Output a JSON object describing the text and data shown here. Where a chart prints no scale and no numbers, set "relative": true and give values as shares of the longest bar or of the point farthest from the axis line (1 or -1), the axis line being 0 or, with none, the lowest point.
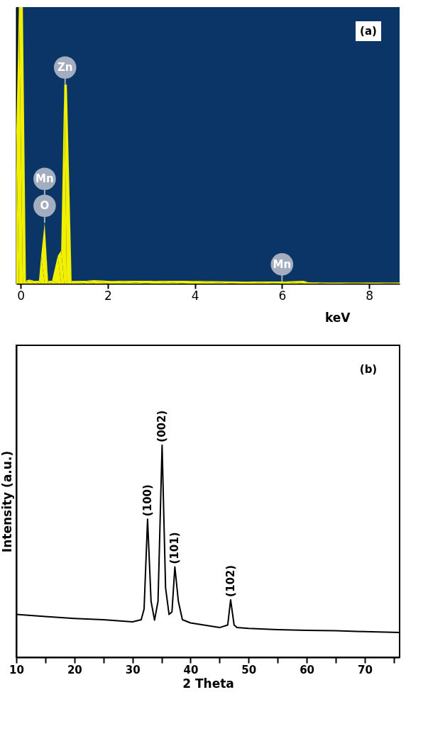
{
  "chart_data": [
    {
      "type": "area",
      "relative": true,
      "xlabel": "keV",
      "xlim": [
        -0.1,
        8.7
      ],
      "xticks": [
        0,
        2,
        4,
        6,
        8
      ],
      "x": [
        -0.1,
        -0.04,
        0.05,
        0.12,
        0.2,
        0.3,
        0.42,
        0.47,
        0.55,
        0.63,
        0.72,
        0.85,
        0.93,
        1.0,
        1.06,
        1.17,
        1.5,
        1.7,
        2,
        3,
        3.8,
        5,
        6,
        6.5,
        6.6,
        7,
        8,
        8.7
      ],
      "series": [
        {
          "color": "#f0f000",
          "values": [
            0.55,
            1,
            1,
            0.01,
            0.015,
            0.01,
            0.01,
            0.1,
            0.22,
            0.01,
            0.01,
            0.1,
            0.12,
            0.72,
            0.72,
            0.01,
            0.01,
            0.013,
            0.01,
            0.01,
            0.01,
            0.008,
            0.008,
            0.01,
            0.005,
            0.004,
            0.004,
            0.004
          ]
        }
      ],
      "annotations": [
        {
          "text": "Zn",
          "x": 1.02,
          "y": 0.72
        },
        {
          "text": "O",
          "x": 0.55,
          "y": 0.22
        },
        {
          "text": "Mn",
          "x": 0.55,
          "y": 0.22
        },
        {
          "text": "Mn",
          "x": 6.0,
          "y": 0.008
        },
        "(a)"
      ]
    },
    {
      "type": "line",
      "relative": true,
      "xlabel": "2 Theta",
      "ylabel": "Intensity (a.u.)",
      "xlim": [
        10,
        76
      ],
      "xticks": [
        10,
        {
          "value": 15,
          "label": null
        },
        20,
        {
          "value": 25,
          "label": null
        },
        30,
        {
          "value": 35,
          "label": null
        },
        40,
        {
          "value": 45,
          "label": null
        },
        50,
        {
          "value": 55,
          "label": null
        },
        60,
        {
          "value": 65,
          "label": null
        },
        70,
        {
          "value": 75,
          "label": null
        }
      ],
      "x": [
        10,
        15,
        20,
        25,
        30,
        31.5,
        32,
        32.6,
        33.2,
        33.8,
        34.4,
        35.1,
        35.7,
        36.3,
        36.8,
        37.3,
        37.9,
        38.6,
        40,
        45,
        46.4,
        46.9,
        47.5,
        48,
        50,
        55,
        60,
        65,
        70,
        76
      ],
      "series": [
        {
          "color": "#000000",
          "values": [
            0.202,
            0.192,
            0.183,
            0.177,
            0.167,
            0.177,
            0.227,
            0.651,
            0.264,
            0.175,
            0.264,
            1.0,
            0.327,
            0.202,
            0.214,
            0.426,
            0.264,
            0.177,
            0.162,
            0.14,
            0.152,
            0.271,
            0.152,
            0.14,
            0.136,
            0.13,
            0.127,
            0.125,
            0.121,
            0.117
          ]
        }
      ],
      "annotations": [
        {
          "text": "(100)",
          "x": 32.6,
          "y": 0.651
        },
        {
          "text": "(002)",
          "x": 35.1,
          "y": 1.0
        },
        {
          "text": "(101)",
          "x": 37.3,
          "y": 0.426
        },
        {
          "text": "(102)",
          "x": 46.9,
          "y": 0.271
        },
        "(b)"
      ]
    }
  ]
}
